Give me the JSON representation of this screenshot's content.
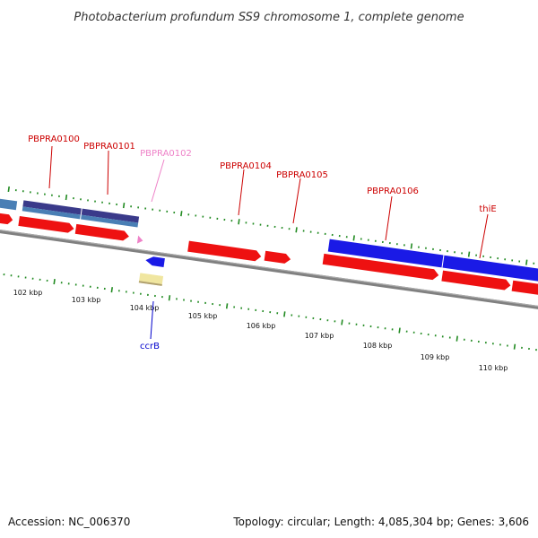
{
  "title": "Photobacterium profundum SS9 chromosome 1, complete genome",
  "footer": {
    "accession": "Accession: NC_006370",
    "topology": "Topology: circular; Length: 4,085,304 bp; Genes: 3,606"
  },
  "ruler_labels": [
    "102 kbp",
    "103 kbp",
    "104 kbp",
    "105 kbp",
    "106 kbp",
    "107 kbp",
    "108 kbp",
    "109 kbp",
    "110 kbp"
  ],
  "gene_labels": [
    {
      "text": "PBPRA0100",
      "color": "#cc0000"
    },
    {
      "text": "PBPRA0101",
      "color": "#cc0000"
    },
    {
      "text": "PBPRA0102",
      "color": "#ee82c8"
    },
    {
      "text": "PBPRA0104",
      "color": "#cc0000"
    },
    {
      "text": "PBPRA0105",
      "color": "#cc0000"
    },
    {
      "text": "PBPRA0106",
      "color": "#cc0000"
    },
    {
      "text": "thiE",
      "color": "#cc0000"
    },
    {
      "text": "ccrB",
      "color": "#0000cc"
    }
  ],
  "colors": {
    "cds_red": "#ee1111",
    "gene_blue": "#1a1ae6",
    "steel_blue": "#4a7fb5",
    "navy": "#3a3a8a",
    "pink": "#ee82c8",
    "tan": "#f0e6a0",
    "tick_green": "#228b22",
    "backbone": "#808080"
  }
}
